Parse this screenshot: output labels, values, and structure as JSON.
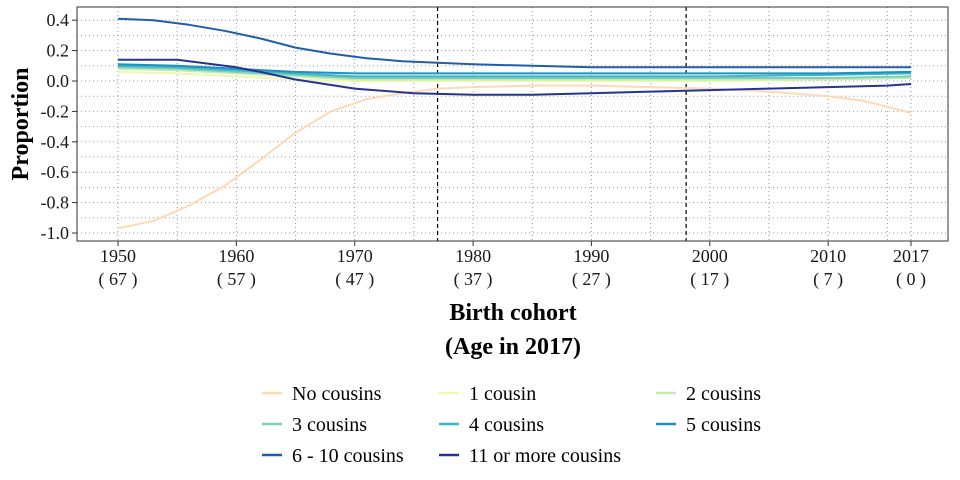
{
  "chart_data": {
    "type": "line",
    "title": "",
    "xlabel": "Birth cohort",
    "xlabel_line2": "(Age in 2017)",
    "ylabel": "Proportion",
    "xlim": [
      1950,
      2017
    ],
    "ylim": [
      -1.0,
      0.4
    ],
    "y_ticks": [
      "0.4",
      "0.2",
      "0.0",
      "-0.2",
      "-0.4",
      "-0.6",
      "-0.8",
      "-1.0"
    ],
    "y_tick_values": [
      0.4,
      0.2,
      0.0,
      -0.2,
      -0.4,
      -0.6,
      -0.8,
      -1.0
    ],
    "x_ticks": [
      {
        "x": 1950,
        "year": "1950",
        "age": "( 67 )"
      },
      {
        "x": 1960,
        "year": "1960",
        "age": "( 57 )"
      },
      {
        "x": 1970,
        "year": "1970",
        "age": "( 47 )"
      },
      {
        "x": 1980,
        "year": "1980",
        "age": "( 37 )"
      },
      {
        "x": 1990,
        "year": "1990",
        "age": "( 27 )"
      },
      {
        "x": 2000,
        "year": "2000",
        "age": "( 17 )"
      },
      {
        "x": 2010,
        "year": "2010",
        "age": "( 7 )"
      },
      {
        "x": 2017,
        "year": "2017",
        "age": "( 0 )"
      }
    ],
    "reference_lines_x": [
      1977,
      1998
    ],
    "grid": true,
    "legend_position": "bottom",
    "series": [
      {
        "name": "No cousins",
        "color": "#fdd9b5",
        "x": [
          1950,
          1953,
          1956,
          1959,
          1962,
          1965,
          1968,
          1971,
          1974,
          1977,
          1980,
          1985,
          1990,
          1995,
          2000,
          2005,
          2010,
          2013,
          2015,
          2017
        ],
        "y": [
          -0.97,
          -0.92,
          -0.82,
          -0.69,
          -0.52,
          -0.34,
          -0.2,
          -0.12,
          -0.08,
          -0.05,
          -0.04,
          -0.03,
          -0.03,
          -0.04,
          -0.05,
          -0.07,
          -0.1,
          -0.13,
          -0.17,
          -0.21
        ]
      },
      {
        "name": "1 cousin",
        "color": "#edf8b1",
        "x": [
          1950,
          1955,
          1960,
          1965,
          1970,
          1980,
          1990,
          2000,
          2010,
          2017
        ],
        "y": [
          0.06,
          0.05,
          0.03,
          0.01,
          0.0,
          0.0,
          0.0,
          0.0,
          0.01,
          0.02
        ]
      },
      {
        "name": "2 cousins",
        "color": "#c7e9b4",
        "x": [
          1950,
          1955,
          1960,
          1965,
          1970,
          1980,
          1990,
          2000,
          2010,
          2017
        ],
        "y": [
          0.08,
          0.07,
          0.05,
          0.03,
          0.01,
          0.01,
          0.01,
          0.01,
          0.01,
          0.02
        ]
      },
      {
        "name": "3 cousins",
        "color": "#7fcdbb",
        "x": [
          1950,
          1955,
          1960,
          1965,
          1970,
          1980,
          1990,
          2000,
          2010,
          2017
        ],
        "y": [
          0.09,
          0.08,
          0.06,
          0.04,
          0.02,
          0.02,
          0.02,
          0.02,
          0.02,
          0.03
        ]
      },
      {
        "name": "4 cousins",
        "color": "#41b6c4",
        "x": [
          1950,
          1955,
          1960,
          1965,
          1970,
          1980,
          1990,
          2000,
          2010,
          2017
        ],
        "y": [
          0.1,
          0.09,
          0.07,
          0.05,
          0.03,
          0.03,
          0.03,
          0.03,
          0.04,
          0.05
        ]
      },
      {
        "name": "5 cousins",
        "color": "#1d91c0",
        "x": [
          1950,
          1955,
          1960,
          1965,
          1970,
          1980,
          1990,
          2000,
          2010,
          2017
        ],
        "y": [
          0.11,
          0.1,
          0.08,
          0.06,
          0.05,
          0.05,
          0.05,
          0.05,
          0.05,
          0.06
        ]
      },
      {
        "name": "6 - 10 cousins",
        "color": "#225ea8",
        "x": [
          1950,
          1953,
          1956,
          1959,
          1962,
          1965,
          1968,
          1971,
          1974,
          1977,
          1980,
          1985,
          1990,
          1995,
          2000,
          2005,
          2010,
          2017
        ],
        "y": [
          0.41,
          0.4,
          0.37,
          0.33,
          0.28,
          0.22,
          0.18,
          0.15,
          0.13,
          0.12,
          0.11,
          0.1,
          0.09,
          0.09,
          0.09,
          0.09,
          0.09,
          0.09
        ]
      },
      {
        "name": "11 or more cousins",
        "color": "#253494",
        "x": [
          1950,
          1955,
          1960,
          1962,
          1965,
          1970,
          1975,
          1980,
          1985,
          1990,
          1995,
          2000,
          2005,
          2010,
          2015,
          2017
        ],
        "y": [
          0.14,
          0.14,
          0.09,
          0.06,
          0.01,
          -0.05,
          -0.08,
          -0.09,
          -0.09,
          -0.08,
          -0.07,
          -0.06,
          -0.05,
          -0.04,
          -0.03,
          -0.02
        ]
      }
    ]
  }
}
